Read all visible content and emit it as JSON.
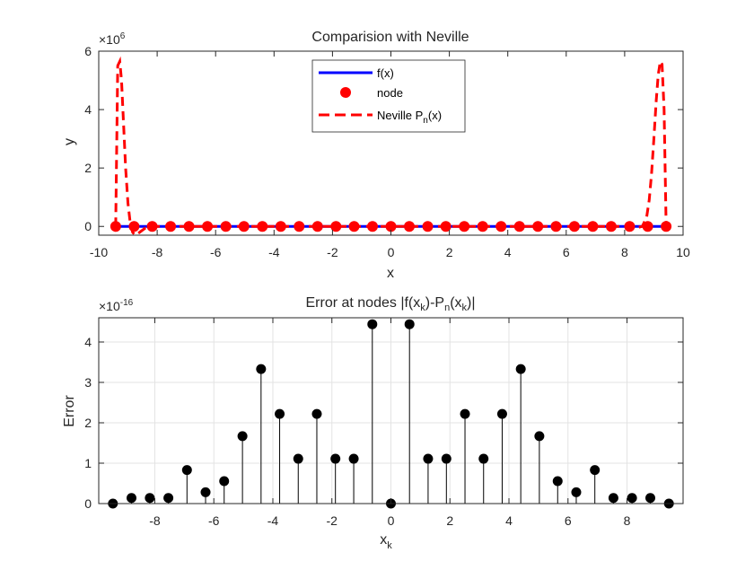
{
  "chart_data": [
    {
      "type": "line",
      "title": "Comparision with Neville",
      "xlabel": "x",
      "ylabel": "y",
      "exponent_base": "×10",
      "exponent_power": "6",
      "xlim": [
        -10,
        10
      ],
      "ylim": [
        -300000,
        6000000
      ],
      "xticks": [
        -10,
        -8,
        -6,
        -4,
        -2,
        0,
        2,
        4,
        6,
        8,
        10
      ],
      "yticks": [
        0,
        2000000,
        4000000,
        6000000
      ],
      "ytick_labels": [
        "0",
        "2",
        "4",
        "6"
      ],
      "grid": false,
      "legend_position": "top-center",
      "legend": [
        {
          "label": "f(x)",
          "style": "solid-line"
        },
        {
          "label": "node",
          "style": "marker"
        },
        {
          "label_main": "Neville P",
          "label_sub": "n",
          "label_tail": "(x)",
          "style": "dashed-line"
        }
      ],
      "colors": {
        "f": "#0000ff",
        "node": "#ff0000",
        "neville": "#ff0000"
      },
      "series": [
        {
          "name": "f(x)",
          "x": [
            -9.42,
            9.42
          ],
          "y": [
            0,
            0
          ]
        },
        {
          "name": "node",
          "x": [
            -9.42,
            -8.79,
            -8.17,
            -7.54,
            -6.91,
            -6.28,
            -5.65,
            -5.03,
            -4.4,
            -3.77,
            -3.14,
            -2.51,
            -1.88,
            -1.26,
            -0.63,
            0,
            0.63,
            1.26,
            1.88,
            2.51,
            3.14,
            3.77,
            4.4,
            5.03,
            5.65,
            6.28,
            6.91,
            7.54,
            8.17,
            8.79,
            9.42
          ],
          "y": [
            0,
            0,
            0,
            0,
            0,
            0,
            0,
            0,
            0,
            0,
            0,
            0,
            0,
            0,
            0,
            0,
            0,
            0,
            0,
            0,
            0,
            0,
            0,
            0,
            0,
            0,
            0,
            0,
            0,
            0,
            0
          ]
        },
        {
          "name": "Neville P_n(x)",
          "x": [
            -9.42,
            -9.35,
            -9.28,
            -9.22,
            -9.15,
            -9.08,
            -9.0,
            -8.92,
            -8.84,
            -8.75,
            -8.6,
            -8.4,
            -8.2,
            8.2,
            8.4,
            8.6,
            8.75,
            8.84,
            8.92,
            9.0,
            9.08,
            9.15,
            9.22,
            9.28,
            9.35,
            9.42
          ],
          "y": [
            0,
            5500000,
            5650000,
            5000000,
            3500000,
            2000000,
            800000,
            100000,
            -200000,
            -300000,
            -200000,
            -50000,
            0,
            0,
            -50000,
            0,
            300000,
            900000,
            1800000,
            3000000,
            4300000,
            5200000,
            5650000,
            5550000,
            4000000,
            0
          ]
        }
      ]
    },
    {
      "type": "stem",
      "title_main": "Error at nodes |f(x",
      "title_sub1": "k",
      "title_mid": ")-P",
      "title_sub2": "n",
      "title_mid2": "(x",
      "title_sub3": "k",
      "title_tail": ")|",
      "xlabel_main": "x",
      "xlabel_sub": "k",
      "ylabel": "Error",
      "exponent_base": "×10",
      "exponent_power": "-16",
      "xlim": [
        -9.9,
        9.9
      ],
      "ylim": [
        0,
        4.6e-16
      ],
      "xticks": [
        -8,
        -6,
        -4,
        -2,
        0,
        2,
        4,
        6,
        8
      ],
      "yticks": [
        0,
        1e-16,
        2e-16,
        3e-16,
        4e-16
      ],
      "ytick_labels": [
        "0",
        "1",
        "2",
        "3",
        "4"
      ],
      "grid": true,
      "colors": {
        "stem": "#000000"
      },
      "x": [
        -9.42,
        -8.79,
        -8.17,
        -7.54,
        -6.91,
        -6.28,
        -5.65,
        -5.03,
        -4.4,
        -3.77,
        -3.14,
        -2.51,
        -1.88,
        -1.26,
        -0.63,
        0,
        0.63,
        1.26,
        1.88,
        2.51,
        3.14,
        3.77,
        4.4,
        5.03,
        5.65,
        6.28,
        6.91,
        7.54,
        8.17,
        8.79,
        9.42
      ],
      "y": [
        0,
        1.39e-17,
        1.39e-17,
        1.39e-17,
        8.3e-17,
        2.8e-17,
        5.55e-17,
        1.67e-16,
        3.33e-16,
        2.22e-16,
        1.11e-16,
        2.22e-16,
        1.11e-16,
        1.11e-16,
        4.44e-16,
        0,
        4.44e-16,
        1.11e-16,
        1.11e-16,
        2.22e-16,
        1.11e-16,
        2.22e-16,
        3.33e-16,
        1.67e-16,
        5.55e-17,
        2.8e-17,
        8.3e-17,
        1.39e-17,
        1.39e-17,
        1.39e-17,
        0
      ]
    }
  ]
}
